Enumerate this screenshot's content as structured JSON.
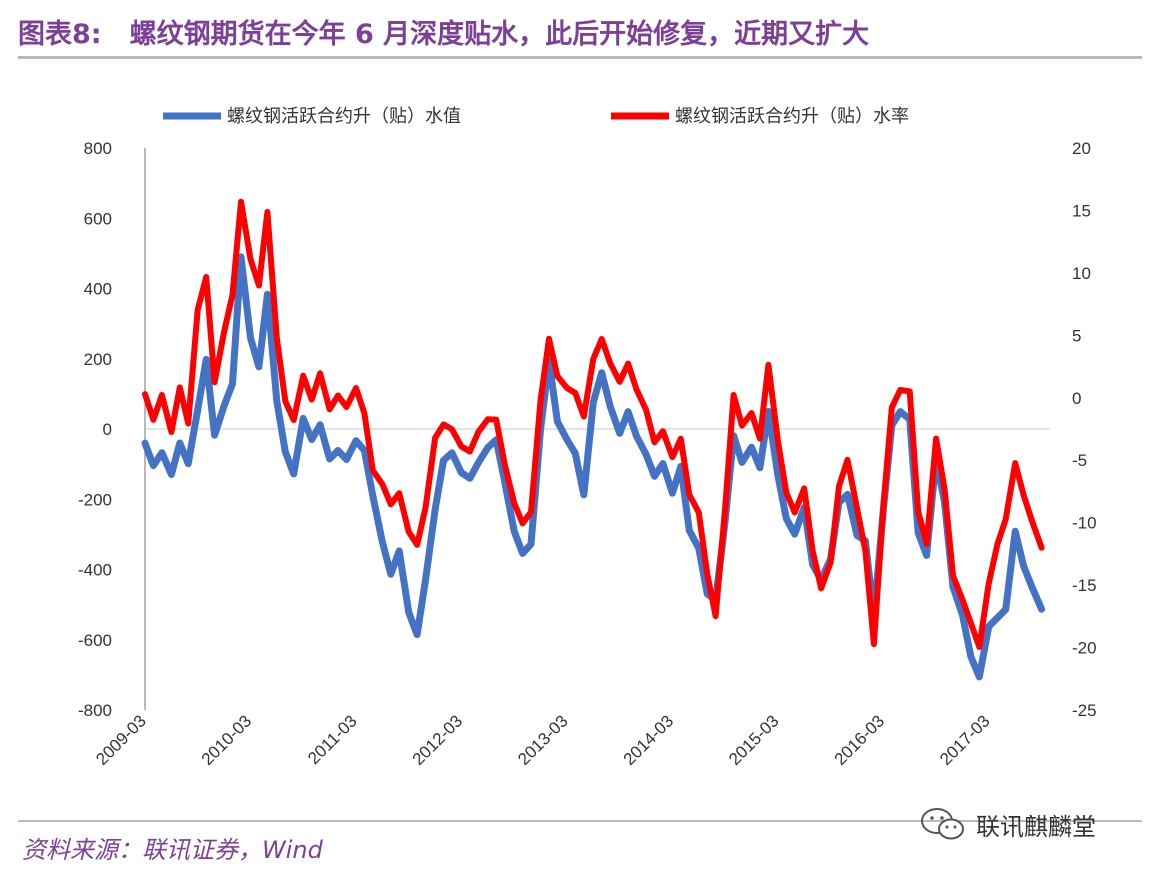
{
  "header": {
    "figure_no": "图表8:",
    "title": "螺纹钢期货在今年 6 月深度贴水，此后开始修复，近期又扩大"
  },
  "footer": {
    "source": "资料来源：联讯证券，Wind",
    "watermark": "联讯麒麟堂"
  },
  "colors": {
    "title": "#7e3f98",
    "series_value": "#4472c4",
    "series_rate": "#ff0000",
    "axis": "#888888",
    "zero_line": "#c8c8c8"
  },
  "chart_data": {
    "type": "line",
    "legend_position": "top",
    "grid": false,
    "y_left": {
      "min": -800,
      "max": 800,
      "ticks": [
        800,
        600,
        400,
        200,
        0,
        -200,
        -400,
        -600,
        -800
      ]
    },
    "y_right": {
      "min": -25,
      "max": 20,
      "ticks": [
        20,
        15,
        10,
        5,
        0,
        -5,
        -10,
        -15,
        -20,
        -25
      ]
    },
    "x_ticks": [
      "2009-03",
      "2010-03",
      "2011-03",
      "2012-03",
      "2013-03",
      "2014-03",
      "2015-03",
      "2016-03",
      "2017-03"
    ],
    "series": [
      {
        "name": "螺纹钢活跃合约升（贴）水值",
        "axis": "left",
        "x": [
          2009.17,
          2009.25,
          2009.33,
          2009.42,
          2009.5,
          2009.58,
          2009.67,
          2009.75,
          2009.83,
          2009.92,
          2010.0,
          2010.08,
          2010.17,
          2010.25,
          2010.33,
          2010.42,
          2010.5,
          2010.58,
          2010.67,
          2010.75,
          2010.83,
          2010.92,
          2011.0,
          2011.08,
          2011.17,
          2011.25,
          2011.33,
          2011.42,
          2011.5,
          2011.58,
          2011.67,
          2011.75,
          2011.83,
          2011.92,
          2012.0,
          2012.08,
          2012.17,
          2012.25,
          2012.33,
          2012.42,
          2012.5,
          2012.58,
          2012.67,
          2012.75,
          2012.83,
          2012.92,
          2013.0,
          2013.08,
          2013.17,
          2013.25,
          2013.33,
          2013.42,
          2013.5,
          2013.58,
          2013.67,
          2013.75,
          2013.83,
          2013.92,
          2014.0,
          2014.08,
          2014.17,
          2014.25,
          2014.33,
          2014.42,
          2014.5,
          2014.58,
          2014.67,
          2014.75,
          2014.83,
          2014.92,
          2015.0,
          2015.08,
          2015.17,
          2015.25,
          2015.33,
          2015.42,
          2015.5,
          2015.58,
          2015.67,
          2015.75,
          2015.83,
          2015.92,
          2016.0,
          2016.08,
          2016.17,
          2016.25,
          2016.33,
          2016.42,
          2016.5,
          2016.58,
          2016.67,
          2016.75,
          2016.83,
          2016.92,
          2017.0,
          2017.08,
          2017.17,
          2017.25,
          2017.33,
          2017.42,
          2017.5,
          2017.58,
          2017.67
        ],
        "values": [
          -40,
          -100,
          -60,
          -120,
          -30,
          -90,
          60,
          200,
          -20,
          60,
          120,
          480,
          250,
          170,
          380,
          80,
          -60,
          -120,
          40,
          -20,
          20,
          -80,
          -60,
          -90,
          -40,
          -70,
          -200,
          -330,
          -420,
          -350,
          -520,
          -580,
          -420,
          -220,
          -80,
          -60,
          -120,
          -140,
          -100,
          -60,
          -40,
          -160,
          -300,
          -360,
          -330,
          0,
          200,
          30,
          -20,
          -60,
          -180,
          80,
          160,
          60,
          -20,
          40,
          -30,
          -80,
          -140,
          -100,
          -180,
          -100,
          -280,
          -330,
          -460,
          -480,
          -260,
          -20,
          -100,
          -60,
          -120,
          40,
          -140,
          -260,
          -300,
          -220,
          -380,
          -420,
          -360,
          -200,
          -180,
          -300,
          -320,
          -540,
          -240,
          0,
          40,
          20,
          -300,
          -360,
          -80,
          -200,
          -440,
          -520,
          -640,
          -700,
          -560,
          -540,
          -520,
          -300,
          -400,
          -460,
          -520
        ]
      },
      {
        "name": "螺纹钢活跃合约升（贴）水率",
        "axis": "right",
        "x": [
          2009.17,
          2009.25,
          2009.33,
          2009.42,
          2009.5,
          2009.58,
          2009.67,
          2009.75,
          2009.83,
          2009.92,
          2010.0,
          2010.08,
          2010.17,
          2010.25,
          2010.33,
          2010.42,
          2010.5,
          2010.58,
          2010.67,
          2010.75,
          2010.83,
          2010.92,
          2011.0,
          2011.08,
          2011.17,
          2011.25,
          2011.33,
          2011.42,
          2011.5,
          2011.58,
          2011.67,
          2011.75,
          2011.83,
          2011.92,
          2012.0,
          2012.08,
          2012.17,
          2012.25,
          2012.33,
          2012.42,
          2012.5,
          2012.58,
          2012.67,
          2012.75,
          2012.83,
          2012.92,
          2013.0,
          2013.08,
          2013.17,
          2013.25,
          2013.33,
          2013.42,
          2013.5,
          2013.58,
          2013.67,
          2013.75,
          2013.83,
          2013.92,
          2014.0,
          2014.08,
          2014.17,
          2014.25,
          2014.33,
          2014.42,
          2014.5,
          2014.58,
          2014.67,
          2014.75,
          2014.83,
          2014.92,
          2015.0,
          2015.08,
          2015.17,
          2015.25,
          2015.33,
          2015.42,
          2015.5,
          2015.58,
          2015.67,
          2015.75,
          2015.83,
          2015.92,
          2016.0,
          2016.08,
          2016.17,
          2016.25,
          2016.33,
          2016.42,
          2016.5,
          2016.58,
          2016.67,
          2016.75,
          2016.83,
          2016.92,
          2017.0,
          2017.08,
          2017.17,
          2017.25,
          2017.33,
          2017.42,
          2017.5,
          2017.58,
          2017.67
        ],
        "values": [
          0.5,
          -1.5,
          0.5,
          -2.5,
          1.0,
          -2.0,
          7.0,
          9.5,
          1.0,
          5.0,
          8.0,
          15.5,
          11.0,
          9.0,
          15.0,
          5.0,
          0.0,
          -1.5,
          2.0,
          0.0,
          2.0,
          -1.0,
          0.0,
          -1.0,
          0.5,
          -1.5,
          -6.0,
          -7.0,
          -8.5,
          -7.5,
          -10.5,
          -11.5,
          -8.5,
          -3.0,
          -2.0,
          -2.5,
          -4.0,
          -4.5,
          -3.0,
          -2.0,
          -2.0,
          -5.5,
          -8.5,
          -10.0,
          -9.0,
          0.0,
          5.0,
          2.0,
          1.0,
          0.5,
          -1.5,
          3.0,
          4.5,
          2.5,
          1.0,
          2.5,
          0.5,
          -1.0,
          -3.5,
          -2.5,
          -4.5,
          -3.0,
          -7.5,
          -9.0,
          -14.0,
          -17.5,
          -9.0,
          0.0,
          -2.5,
          -1.5,
          -3.5,
          2.5,
          -3.5,
          -7.5,
          -9.0,
          -7.0,
          -12.0,
          -15.0,
          -13.0,
          -7.0,
          -5.0,
          -9.0,
          -12.5,
          -20.0,
          -9.0,
          -1.0,
          0.5,
          0.5,
          -9.0,
          -11.5,
          -3.0,
          -7.0,
          -14.0,
          -16.0,
          -18.0,
          -20.0,
          -15.0,
          -12.0,
          -10.0,
          -5.5,
          -8.0,
          -10.0,
          -12.0
        ]
      }
    ]
  }
}
